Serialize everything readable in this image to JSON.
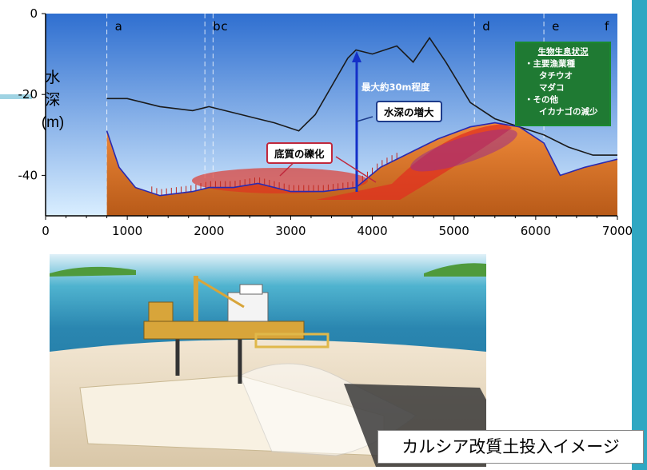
{
  "chart": {
    "type": "area",
    "ylabel_chars": [
      "水",
      "深",
      "(m)"
    ],
    "y_ticks": [
      "0",
      "-20",
      "-40"
    ],
    "x_ticks": [
      "0",
      "1000",
      "2000",
      "3000",
      "4000",
      "5000",
      "6000",
      "7000"
    ],
    "xlim": [
      0,
      7000
    ],
    "ylim": [
      -50,
      0
    ],
    "sections": [
      {
        "label": "a",
        "x": 750
      },
      {
        "label": "b",
        "x": 1950
      },
      {
        "label": "c",
        "x": 2050
      },
      {
        "label": "d",
        "x": 5250
      },
      {
        "label": "e",
        "x": 6100
      },
      {
        "label": "f",
        "x": 7000
      }
    ],
    "series": [
      {
        "name": "",
        "color": "#1a1a1a",
        "x": [
          750,
          1000,
          1400,
          1800,
          2000,
          2400,
          2600,
          2800,
          3100,
          3300,
          3500,
          3700,
          3800,
          4000,
          4300,
          4500,
          4700,
          4900,
          5200,
          5500,
          5800,
          6100,
          6400,
          6700,
          7000
        ],
        "y": [
          -21,
          -21,
          -23,
          -24,
          -23,
          -25,
          -26,
          -27,
          -29,
          -25,
          -18,
          -11,
          -9,
          -10,
          -8,
          -12,
          -6,
          -12,
          -22,
          -26,
          -28,
          -30,
          -33,
          -35,
          -35
        ]
      },
      {
        "name": "",
        "color": "#2a2ab0",
        "x": [
          750,
          900,
          1100,
          1400,
          1800,
          2000,
          2300,
          2600,
          3000,
          3400,
          3800,
          4100,
          4400,
          4800,
          5200,
          5500,
          5800,
          6100,
          6300,
          6600,
          7000
        ],
        "y": [
          -29,
          -38,
          -43,
          -45,
          -44,
          -43,
          -43,
          -42,
          -44,
          -44,
          -43,
          -38,
          -35,
          -31,
          -28,
          -27,
          -28,
          -32,
          -40,
          -38,
          -36
        ]
      }
    ]
  },
  "callouts": {
    "depth_increase": "水深の増大",
    "max_depth": "最大約30m程度",
    "gravel": "底質の礫化"
  },
  "legend": {
    "title": "生物生息状況",
    "lines": [
      "・主要漁業種",
      "タチウオ",
      "マダコ",
      "・その他",
      "イカナゴの減少"
    ]
  },
  "caption": "カルシア改質土投入イメージ",
  "colors": {
    "water_top": "#3f7fd6",
    "water_bottom": "#bfe0ff",
    "sediment": "#e07a2a",
    "ellipse": "#e03020",
    "arrow": "#1430c8"
  }
}
